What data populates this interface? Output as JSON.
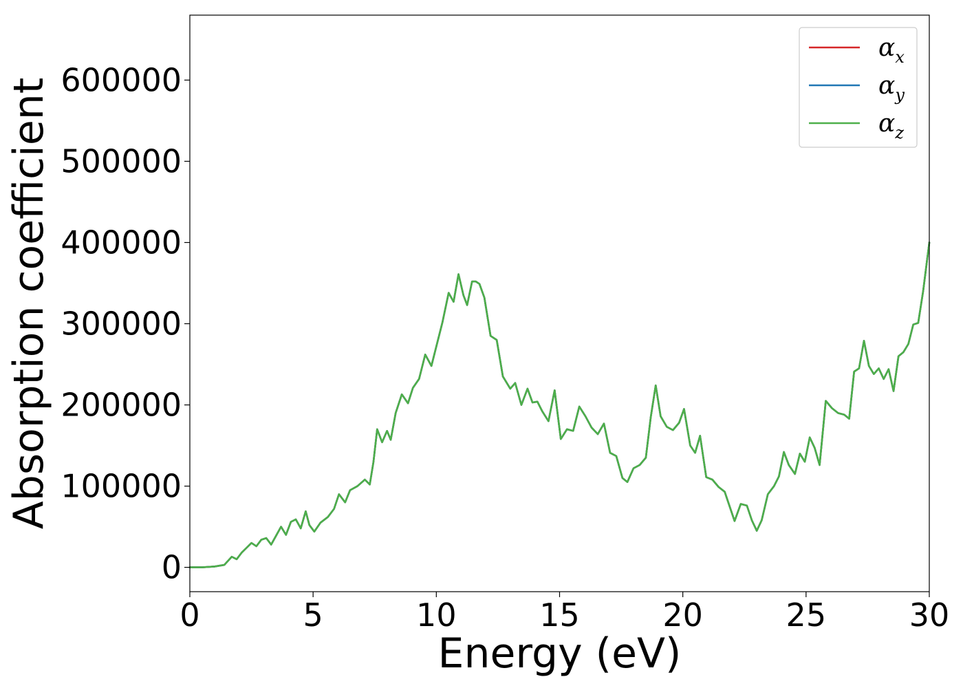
{
  "chart_data": {
    "type": "line",
    "xlabel": "Energy (eV)",
    "ylabel": "Absorption coefficient",
    "xlim": [
      0,
      30
    ],
    "ylim": [
      -30000,
      680000
    ],
    "xticks": [
      0,
      5,
      10,
      15,
      20,
      25,
      30
    ],
    "yticks": [
      0,
      100000,
      200000,
      300000,
      400000,
      500000,
      600000
    ],
    "grid": false,
    "legend_position": "top-right",
    "x": [
      0,
      0.5,
      1.0,
      1.4,
      1.7,
      1.9,
      2.1,
      2.3,
      2.5,
      2.7,
      2.9,
      3.1,
      3.3,
      3.5,
      3.7,
      3.9,
      4.1,
      4.3,
      4.5,
      4.7,
      4.85,
      5.05,
      5.3,
      5.6,
      5.85,
      6.05,
      6.3,
      6.5,
      6.8,
      7.1,
      7.3,
      7.45,
      7.6,
      7.8,
      8.0,
      8.15,
      8.35,
      8.6,
      8.85,
      9.05,
      9.3,
      9.55,
      9.8,
      10.0,
      10.25,
      10.5,
      10.7,
      10.9,
      11.1,
      11.25,
      11.45,
      11.6,
      11.75,
      11.95,
      12.2,
      12.45,
      12.7,
      13.0,
      13.2,
      13.45,
      13.7,
      13.9,
      14.1,
      14.3,
      14.55,
      14.8,
      15.05,
      15.3,
      15.55,
      15.8,
      16.05,
      16.3,
      16.55,
      16.8,
      17.05,
      17.3,
      17.55,
      17.75,
      18.0,
      18.25,
      18.5,
      18.7,
      18.9,
      19.1,
      19.35,
      19.6,
      19.85,
      20.05,
      20.3,
      20.5,
      20.7,
      20.95,
      21.2,
      21.45,
      21.7,
      21.9,
      22.1,
      22.35,
      22.6,
      22.8,
      23.0,
      23.2,
      23.45,
      23.7,
      23.9,
      24.1,
      24.3,
      24.55,
      24.75,
      24.95,
      25.15,
      25.35,
      25.55,
      25.8,
      26.05,
      26.3,
      26.55,
      26.75,
      26.95,
      27.15,
      27.35,
      27.55,
      27.75,
      27.95,
      28.15,
      28.35,
      28.55,
      28.75,
      28.95,
      29.15,
      29.35,
      29.55,
      29.75,
      30.0
    ],
    "series": [
      {
        "name": "α_x",
        "color": "#d62728",
        "values": [
          0,
          0,
          1000,
          3000,
          13000,
          10000,
          18000,
          24000,
          30000,
          26000,
          34000,
          36000,
          28000,
          39000,
          50000,
          40000,
          56000,
          59000,
          48000,
          69000,
          52000,
          44000,
          55000,
          62000,
          72000,
          90000,
          80000,
          95000,
          100000,
          108000,
          102000,
          130000,
          170000,
          154000,
          168000,
          157000,
          190000,
          213000,
          202000,
          221000,
          232000,
          262000,
          248000,
          272000,
          302000,
          338000,
          327000,
          361000,
          335000,
          323000,
          352000,
          352000,
          349000,
          332000,
          285000,
          280000,
          235000,
          220000,
          227000,
          200000,
          220000,
          203000,
          204000,
          192000,
          180000,
          218000,
          158000,
          170000,
          168000,
          198000,
          186000,
          172000,
          164000,
          177000,
          141000,
          137000,
          110000,
          105000,
          122000,
          126000,
          135000,
          185000,
          224000,
          186000,
          173000,
          169000,
          178000,
          195000,
          150000,
          141000,
          162000,
          111000,
          108000,
          99000,
          93000,
          75000,
          57000,
          78000,
          76000,
          58000,
          45000,
          58000,
          90000,
          100000,
          112000,
          142000,
          126000,
          115000,
          140000,
          130000,
          160000,
          147000,
          126000,
          205000,
          196000,
          190000,
          188000,
          183000,
          241000,
          245000,
          279000,
          248000,
          238000,
          245000,
          232000,
          244000,
          217000,
          260000,
          265000,
          275000,
          299000,
          301000,
          340000,
          400000
        ]
      },
      {
        "name": "α_y",
        "color": "#1f77b4",
        "values": [
          0,
          0,
          1000,
          3000,
          13000,
          10000,
          18000,
          24000,
          30000,
          26000,
          34000,
          36000,
          28000,
          39000,
          50000,
          40000,
          56000,
          59000,
          48000,
          69000,
          52000,
          44000,
          55000,
          62000,
          72000,
          90000,
          80000,
          95000,
          100000,
          108000,
          102000,
          130000,
          170000,
          154000,
          168000,
          157000,
          190000,
          213000,
          202000,
          221000,
          232000,
          262000,
          248000,
          272000,
          302000,
          338000,
          327000,
          361000,
          335000,
          323000,
          352000,
          352000,
          349000,
          332000,
          285000,
          280000,
          235000,
          220000,
          227000,
          200000,
          220000,
          203000,
          204000,
          192000,
          180000,
          218000,
          158000,
          170000,
          168000,
          198000,
          186000,
          172000,
          164000,
          177000,
          141000,
          137000,
          110000,
          105000,
          122000,
          126000,
          135000,
          185000,
          224000,
          186000,
          173000,
          169000,
          178000,
          195000,
          150000,
          141000,
          162000,
          111000,
          108000,
          99000,
          93000,
          75000,
          57000,
          78000,
          76000,
          58000,
          45000,
          58000,
          90000,
          100000,
          112000,
          142000,
          126000,
          115000,
          140000,
          130000,
          160000,
          147000,
          126000,
          205000,
          196000,
          190000,
          188000,
          183000,
          241000,
          245000,
          279000,
          248000,
          238000,
          245000,
          232000,
          244000,
          217000,
          260000,
          265000,
          275000,
          299000,
          301000,
          340000,
          400000
        ]
      },
      {
        "name": "α_z",
        "color": "#4daf4a",
        "values": [
          0,
          0,
          1000,
          3000,
          13000,
          10000,
          18000,
          24000,
          30000,
          26000,
          34000,
          36000,
          28000,
          39000,
          50000,
          40000,
          56000,
          59000,
          48000,
          69000,
          52000,
          44000,
          55000,
          62000,
          72000,
          90000,
          80000,
          95000,
          100000,
          108000,
          102000,
          130000,
          170000,
          154000,
          168000,
          157000,
          190000,
          213000,
          202000,
          221000,
          232000,
          262000,
          248000,
          272000,
          302000,
          338000,
          327000,
          361000,
          335000,
          323000,
          352000,
          352000,
          349000,
          332000,
          285000,
          280000,
          235000,
          220000,
          227000,
          200000,
          220000,
          203000,
          204000,
          192000,
          180000,
          218000,
          158000,
          170000,
          168000,
          198000,
          186000,
          172000,
          164000,
          177000,
          141000,
          137000,
          110000,
          105000,
          122000,
          126000,
          135000,
          185000,
          224000,
          186000,
          173000,
          169000,
          178000,
          195000,
          150000,
          141000,
          162000,
          111000,
          108000,
          99000,
          93000,
          75000,
          57000,
          78000,
          76000,
          58000,
          45000,
          58000,
          90000,
          100000,
          112000,
          142000,
          126000,
          115000,
          140000,
          130000,
          160000,
          147000,
          126000,
          205000,
          196000,
          190000,
          188000,
          183000,
          241000,
          245000,
          279000,
          248000,
          238000,
          245000,
          232000,
          244000,
          217000,
          260000,
          265000,
          275000,
          299000,
          301000,
          340000,
          400000
        ]
      }
    ],
    "legend": [
      {
        "symbol": "α",
        "subscript": "x",
        "color": "#d62728"
      },
      {
        "symbol": "α",
        "subscript": "y",
        "color": "#1f77b4"
      },
      {
        "symbol": "α",
        "subscript": "z",
        "color": "#4daf4a"
      }
    ]
  }
}
